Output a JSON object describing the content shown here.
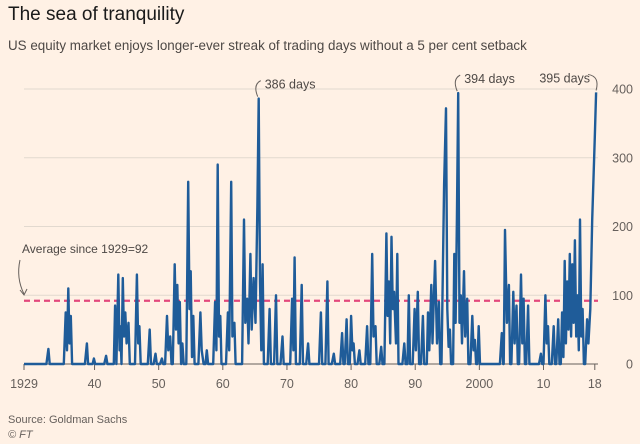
{
  "title": "The sea of tranquility",
  "subtitle": "US equity market enjoys longer-ever streak of trading days without a 5 per cent setback",
  "source": "Source: Goldman Sachs",
  "credit": "© FT",
  "colors": {
    "background": "#fff1e5",
    "line": "#1f5c99",
    "average": "#e3487c",
    "grid": "#e2d9cf",
    "axis": "#66605c"
  },
  "chart_data": {
    "type": "line",
    "title": "The sea of tranquility",
    "xlabel": "",
    "ylabel": "",
    "xlim": [
      1929,
      2018.5
    ],
    "ylim": [
      0,
      400
    ],
    "y_ticks": [
      0,
      100,
      200,
      300,
      400
    ],
    "y_tick_labels": [
      "0",
      "100",
      "200",
      "300",
      "400"
    ],
    "x_ticks": [
      1929,
      1940,
      1950,
      1960,
      1970,
      1980,
      1990,
      2000,
      2010,
      2018
    ],
    "x_tick_labels": [
      "1929",
      "40",
      "50",
      "60",
      "70",
      "80",
      "90",
      "2000",
      "10",
      "18"
    ],
    "series": [
      {
        "name": "Trading days without a 5 per cent setback",
        "points": [
          [
            1929,
            0
          ],
          [
            1932.5,
            0
          ],
          [
            1932.8,
            22
          ],
          [
            1933.0,
            0
          ],
          [
            1935.2,
            0
          ],
          [
            1935.5,
            75
          ],
          [
            1935.7,
            20
          ],
          [
            1935.9,
            110
          ],
          [
            1936.1,
            30
          ],
          [
            1936.3,
            70
          ],
          [
            1936.5,
            0
          ],
          [
            1938.5,
            0
          ],
          [
            1938.8,
            30
          ],
          [
            1939.0,
            0
          ],
          [
            1939.7,
            0
          ],
          [
            1939.9,
            8
          ],
          [
            1940.1,
            0
          ],
          [
            1941.5,
            0
          ],
          [
            1941.8,
            12
          ],
          [
            1942.0,
            0
          ],
          [
            1943.0,
            0
          ],
          [
            1943.2,
            85
          ],
          [
            1943.4,
            0
          ],
          [
            1943.7,
            130
          ],
          [
            1943.9,
            20
          ],
          [
            1944.0,
            55
          ],
          [
            1944.2,
            0
          ],
          [
            1944.4,
            125
          ],
          [
            1944.6,
            40
          ],
          [
            1944.8,
            75
          ],
          [
            1945.0,
            30
          ],
          [
            1945.3,
            60
          ],
          [
            1945.5,
            0
          ],
          [
            1946.3,
            0
          ],
          [
            1946.6,
            130
          ],
          [
            1946.8,
            30
          ],
          [
            1947.0,
            55
          ],
          [
            1947.2,
            0
          ],
          [
            1948.3,
            0
          ],
          [
            1948.6,
            50
          ],
          [
            1948.8,
            0
          ],
          [
            1949.2,
            0
          ],
          [
            1949.5,
            15
          ],
          [
            1949.7,
            0
          ],
          [
            1950.2,
            0
          ],
          [
            1950.5,
            8
          ],
          [
            1950.7,
            0
          ],
          [
            1951.0,
            0
          ],
          [
            1951.3,
            70
          ],
          [
            1951.5,
            20
          ],
          [
            1951.8,
            40
          ],
          [
            1952.0,
            0
          ],
          [
            1952.2,
            0
          ],
          [
            1952.5,
            145
          ],
          [
            1952.7,
            50
          ],
          [
            1952.9,
            115
          ],
          [
            1953.1,
            30
          ],
          [
            1953.3,
            90
          ],
          [
            1953.5,
            0
          ],
          [
            1953.7,
            30
          ],
          [
            1953.9,
            0
          ],
          [
            1954.3,
            0
          ],
          [
            1954.6,
            265
          ],
          [
            1954.8,
            80
          ],
          [
            1955.0,
            135
          ],
          [
            1955.2,
            10
          ],
          [
            1955.4,
            70
          ],
          [
            1955.6,
            0
          ],
          [
            1956.2,
            0
          ],
          [
            1956.5,
            75
          ],
          [
            1956.7,
            20
          ],
          [
            1957.0,
            0
          ],
          [
            1957.3,
            0
          ],
          [
            1957.5,
            20
          ],
          [
            1957.7,
            0
          ],
          [
            1958.5,
            0
          ],
          [
            1958.8,
            90
          ],
          [
            1959.0,
            20
          ],
          [
            1959.2,
            290
          ],
          [
            1959.4,
            40
          ],
          [
            1959.6,
            70
          ],
          [
            1959.8,
            0
          ],
          [
            1960.5,
            0
          ],
          [
            1960.8,
            75
          ],
          [
            1961.0,
            20
          ],
          [
            1961.3,
            265
          ],
          [
            1961.5,
            40
          ],
          [
            1961.8,
            60
          ],
          [
            1962.0,
            0
          ],
          [
            1963.0,
            0
          ],
          [
            1963.3,
            210
          ],
          [
            1963.5,
            60
          ],
          [
            1963.8,
            95
          ],
          [
            1964.0,
            30
          ],
          [
            1964.3,
            160
          ],
          [
            1964.5,
            50
          ],
          [
            1964.8,
            125
          ],
          [
            1965.1,
            60
          ],
          [
            1965.4,
            230
          ],
          [
            1965.6,
            386
          ],
          [
            1965.8,
            120
          ],
          [
            1966.0,
            20
          ],
          [
            1966.2,
            145
          ],
          [
            1966.4,
            0
          ],
          [
            1967.0,
            0
          ],
          [
            1967.3,
            80
          ],
          [
            1967.5,
            0
          ],
          [
            1968.0,
            0
          ],
          [
            1968.3,
            100
          ],
          [
            1968.5,
            0
          ],
          [
            1969.0,
            0
          ],
          [
            1969.3,
            40
          ],
          [
            1969.5,
            0
          ],
          [
            1970.5,
            0
          ],
          [
            1970.8,
            95
          ],
          [
            1971.0,
            20
          ],
          [
            1971.2,
            155
          ],
          [
            1971.4,
            0
          ],
          [
            1972.0,
            0
          ],
          [
            1972.3,
            115
          ],
          [
            1972.5,
            0
          ],
          [
            1973.0,
            0
          ],
          [
            1973.3,
            30
          ],
          [
            1973.5,
            0
          ],
          [
            1975.0,
            0
          ],
          [
            1975.3,
            75
          ],
          [
            1975.5,
            0
          ],
          [
            1976.0,
            0
          ],
          [
            1976.3,
            120
          ],
          [
            1976.5,
            0
          ],
          [
            1977.0,
            0
          ],
          [
            1977.3,
            15
          ],
          [
            1977.5,
            0
          ],
          [
            1978.3,
            0
          ],
          [
            1978.6,
            45
          ],
          [
            1978.8,
            0
          ],
          [
            1979.0,
            0
          ],
          [
            1979.3,
            65
          ],
          [
            1979.5,
            0
          ],
          [
            1979.8,
            0
          ],
          [
            1980.0,
            70
          ],
          [
            1980.2,
            20
          ],
          [
            1980.4,
            30
          ],
          [
            1980.6,
            0
          ],
          [
            1981.0,
            0
          ],
          [
            1981.3,
            20
          ],
          [
            1981.5,
            0
          ],
          [
            1982.2,
            0
          ],
          [
            1982.5,
            55
          ],
          [
            1982.7,
            0
          ],
          [
            1983.0,
            0
          ],
          [
            1983.3,
            160
          ],
          [
            1983.5,
            40
          ],
          [
            1983.8,
            55
          ],
          [
            1984.0,
            0
          ],
          [
            1984.4,
            0
          ],
          [
            1984.7,
            25
          ],
          [
            1984.9,
            0
          ],
          [
            1985.2,
            0
          ],
          [
            1985.5,
            190
          ],
          [
            1985.7,
            70
          ],
          [
            1985.9,
            120
          ],
          [
            1986.1,
            30
          ],
          [
            1986.3,
            185
          ],
          [
            1986.5,
            80
          ],
          [
            1986.7,
            105
          ],
          [
            1987.0,
            30
          ],
          [
            1987.2,
            160
          ],
          [
            1987.4,
            0
          ],
          [
            1988.0,
            0
          ],
          [
            1988.3,
            30
          ],
          [
            1988.5,
            0
          ],
          [
            1988.8,
            0
          ],
          [
            1989.0,
            100
          ],
          [
            1989.2,
            0
          ],
          [
            1989.6,
            0
          ],
          [
            1989.9,
            80
          ],
          [
            1990.1,
            20
          ],
          [
            1990.4,
            105
          ],
          [
            1990.6,
            0
          ],
          [
            1990.9,
            0
          ],
          [
            1991.2,
            70
          ],
          [
            1991.4,
            0
          ],
          [
            1991.8,
            0
          ],
          [
            1992.0,
            75
          ],
          [
            1992.2,
            20
          ],
          [
            1992.5,
            115
          ],
          [
            1992.7,
            30
          ],
          [
            1992.9,
            95
          ],
          [
            1993.1,
            150
          ],
          [
            1993.4,
            30
          ],
          [
            1993.7,
            90
          ],
          [
            1993.9,
            0
          ],
          [
            1994.1,
            0
          ],
          [
            1994.5,
            260
          ],
          [
            1994.8,
            372
          ],
          [
            1995.0,
            80
          ],
          [
            1995.2,
            25
          ],
          [
            1995.4,
            50
          ],
          [
            1995.6,
            0
          ],
          [
            1995.9,
            0
          ],
          [
            1996.1,
            160
          ],
          [
            1996.3,
            60
          ],
          [
            1996.5,
            210
          ],
          [
            1996.7,
            394
          ],
          [
            1996.9,
            60
          ],
          [
            1997.1,
            100
          ],
          [
            1997.3,
            30
          ],
          [
            1997.6,
            135
          ],
          [
            1997.8,
            40
          ],
          [
            1998.1,
            95
          ],
          [
            1998.3,
            0
          ],
          [
            1998.6,
            0
          ],
          [
            1998.9,
            70
          ],
          [
            1999.1,
            20
          ],
          [
            1999.3,
            35
          ],
          [
            1999.5,
            0
          ],
          [
            1999.7,
            0
          ],
          [
            1999.9,
            55
          ],
          [
            2000.1,
            0
          ],
          [
            2003.2,
            0
          ],
          [
            2003.5,
            45
          ],
          [
            2003.7,
            0
          ],
          [
            2003.8,
            0
          ],
          [
            2004.0,
            195
          ],
          [
            2004.3,
            60
          ],
          [
            2004.6,
            115
          ],
          [
            2004.8,
            0
          ],
          [
            2005.0,
            0
          ],
          [
            2005.3,
            105
          ],
          [
            2005.5,
            30
          ],
          [
            2005.8,
            85
          ],
          [
            2006.0,
            0
          ],
          [
            2006.2,
            0
          ],
          [
            2006.5,
            130
          ],
          [
            2006.7,
            30
          ],
          [
            2006.9,
            95
          ],
          [
            2007.1,
            0
          ],
          [
            2007.3,
            0
          ],
          [
            2007.6,
            85
          ],
          [
            2007.8,
            0
          ],
          [
            2009.3,
            0
          ],
          [
            2009.6,
            15
          ],
          [
            2009.8,
            0
          ],
          [
            2010.0,
            0
          ],
          [
            2010.3,
            100
          ],
          [
            2010.5,
            30
          ],
          [
            2010.7,
            55
          ],
          [
            2010.9,
            0
          ],
          [
            2011.3,
            0
          ],
          [
            2011.6,
            55
          ],
          [
            2011.8,
            0
          ],
          [
            2012.0,
            0
          ],
          [
            2012.3,
            65
          ],
          [
            2012.5,
            0
          ],
          [
            2012.7,
            0
          ],
          [
            2012.9,
            75
          ],
          [
            2013.1,
            10
          ],
          [
            2013.3,
            150
          ],
          [
            2013.5,
            30
          ],
          [
            2013.7,
            120
          ],
          [
            2013.9,
            50
          ],
          [
            2014.1,
            160
          ],
          [
            2014.3,
            40
          ],
          [
            2014.5,
            145
          ],
          [
            2014.7,
            60
          ],
          [
            2014.9,
            180
          ],
          [
            2015.1,
            40
          ],
          [
            2015.3,
            100
          ],
          [
            2015.5,
            20
          ],
          [
            2015.7,
            210
          ],
          [
            2015.9,
            40
          ],
          [
            2016.1,
            80
          ],
          [
            2016.3,
            0
          ],
          [
            2016.5,
            0
          ],
          [
            2016.8,
            65
          ],
          [
            2017.0,
            30
          ],
          [
            2017.3,
            80
          ],
          [
            2017.6,
            210
          ],
          [
            2018.0,
            330
          ],
          [
            2018.2,
            395
          ]
        ]
      }
    ],
    "reference_line": {
      "value": 92,
      "label": "Average since 1929=92"
    },
    "annotations": [
      {
        "label": "386 days",
        "x": 1965.6,
        "y": 386
      },
      {
        "label": "394 days",
        "x": 1996.7,
        "y": 394
      },
      {
        "label": "395 days",
        "x": 2018.2,
        "y": 395
      }
    ]
  }
}
